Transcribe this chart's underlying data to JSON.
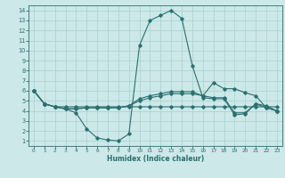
{
  "xlabel": "Humidex (Indice chaleur)",
  "bg_color": "#cce8e8",
  "line_color": "#2a7070",
  "grid_color": "#aacfcf",
  "xlim": [
    -0.5,
    23.5
  ],
  "ylim": [
    0.5,
    14.5
  ],
  "xticks": [
    0,
    1,
    2,
    3,
    4,
    5,
    6,
    7,
    8,
    9,
    10,
    11,
    12,
    13,
    14,
    15,
    16,
    17,
    18,
    19,
    20,
    21,
    22,
    23
  ],
  "yticks": [
    1,
    2,
    3,
    4,
    5,
    6,
    7,
    8,
    9,
    10,
    11,
    12,
    13,
    14
  ],
  "lines": [
    [
      6.0,
      4.7,
      4.4,
      4.4,
      4.4,
      4.4,
      4.4,
      4.4,
      4.4,
      4.4,
      4.4,
      4.4,
      4.4,
      4.4,
      4.4,
      4.4,
      4.4,
      4.4,
      4.4,
      4.4,
      4.4,
      4.4,
      4.4,
      4.4
    ],
    [
      6.0,
      4.7,
      4.4,
      4.2,
      3.8,
      2.2,
      1.3,
      1.1,
      1.0,
      1.7,
      10.5,
      13.0,
      13.5,
      14.0,
      13.2,
      8.5,
      5.3,
      5.2,
      5.2,
      3.6,
      3.7,
      4.7,
      4.3,
      4.0
    ],
    [
      6.0,
      4.7,
      4.4,
      4.2,
      4.2,
      4.3,
      4.3,
      4.3,
      4.3,
      4.5,
      5.0,
      5.3,
      5.5,
      5.7,
      5.7,
      5.7,
      5.5,
      6.8,
      6.2,
      6.2,
      5.8,
      5.5,
      4.3,
      4.0
    ],
    [
      6.0,
      4.7,
      4.4,
      4.2,
      4.2,
      4.3,
      4.3,
      4.3,
      4.3,
      4.5,
      5.2,
      5.5,
      5.7,
      5.9,
      5.9,
      5.9,
      5.5,
      5.3,
      5.3,
      3.8,
      3.8,
      4.7,
      4.5,
      4.0
    ]
  ]
}
